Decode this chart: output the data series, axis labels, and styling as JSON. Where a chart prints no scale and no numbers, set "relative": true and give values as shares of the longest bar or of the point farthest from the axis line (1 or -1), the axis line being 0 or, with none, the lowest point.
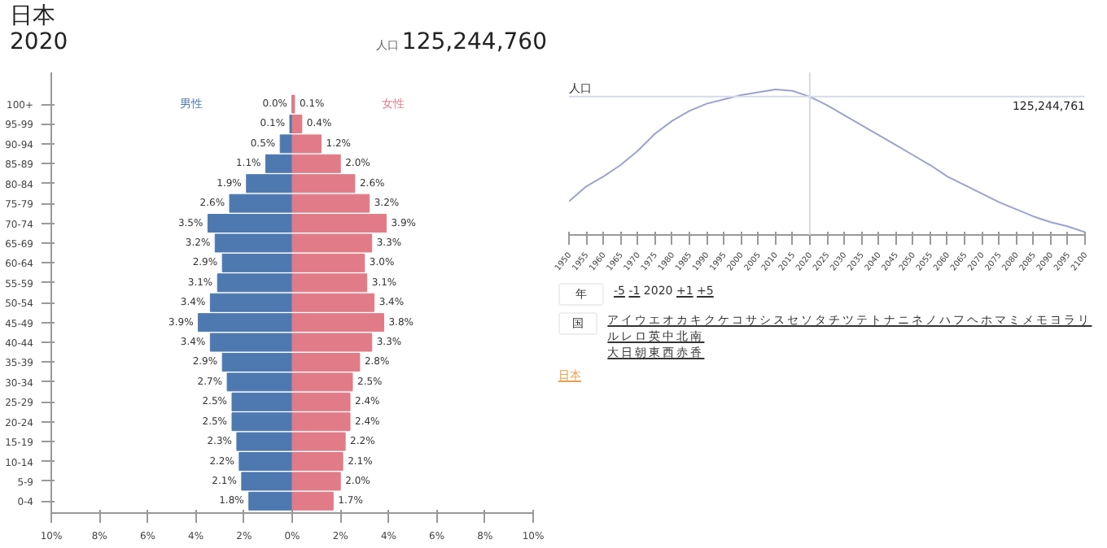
{
  "chart_data": [
    {
      "type": "bar",
      "orientation": "horizontal",
      "title": "日本",
      "subtitle": "2020",
      "annotations": [
        "人口",
        "125,244,760"
      ],
      "categories": [
        "100+",
        "95-99",
        "90-94",
        "85-89",
        "80-84",
        "75-79",
        "70-74",
        "65-69",
        "60-64",
        "55-59",
        "50-54",
        "45-49",
        "40-44",
        "35-39",
        "30-34",
        "25-29",
        "20-24",
        "15-19",
        "10-14",
        "5-9",
        "0-4"
      ],
      "series": [
        {
          "name": "男性",
          "color": "#4e79b0",
          "base": [
            -0.0,
            -0.1,
            -0.5,
            -1.1,
            -1.9,
            -2.6,
            -3.5,
            -3.2,
            -2.9,
            -3.1,
            -3.4,
            -3.9,
            -3.4,
            -2.9,
            -2.7,
            -2.5,
            -2.5,
            -2.3,
            -2.2,
            -2.1,
            -1.8
          ],
          "values": [
            0.0,
            0.1,
            0.5,
            1.1,
            1.9,
            2.6,
            3.5,
            3.2,
            2.9,
            3.1,
            3.4,
            3.9,
            3.4,
            2.9,
            2.7,
            2.5,
            2.5,
            2.3,
            2.2,
            2.1,
            1.8
          ],
          "value_labels": [
            "0.0%",
            "0.1%",
            "0.5%",
            "1.1%",
            "1.9%",
            "2.6%",
            "3.5%",
            "3.2%",
            "2.9%",
            "3.1%",
            "3.4%",
            "3.9%",
            "3.4%",
            "2.9%",
            "2.7%",
            "2.5%",
            "2.5%",
            "2.3%",
            "2.2%",
            "2.1%",
            "1.8%"
          ]
        },
        {
          "name": "女性",
          "color": "#e17b88",
          "values": [
            0.1,
            0.4,
            1.2,
            2.0,
            2.6,
            3.2,
            3.9,
            3.3,
            3.0,
            3.1,
            3.4,
            3.8,
            3.3,
            2.8,
            2.5,
            2.4,
            2.4,
            2.2,
            2.1,
            2.0,
            1.7
          ],
          "value_labels": [
            "0.1%",
            "0.4%",
            "1.2%",
            "2.0%",
            "2.6%",
            "3.2%",
            "3.9%",
            "3.3%",
            "3.0%",
            "3.1%",
            "3.4%",
            "3.8%",
            "3.3%",
            "2.8%",
            "2.5%",
            "2.4%",
            "2.4%",
            "2.2%",
            "2.1%",
            "2.0%",
            "1.7%"
          ]
        }
      ],
      "xlim": [
        -10,
        10
      ],
      "xticks": [
        {
          "value": -10,
          "label": "10%"
        },
        {
          "value": -8,
          "label": "8%"
        },
        {
          "value": -6,
          "label": "6%"
        },
        {
          "value": -4,
          "label": "4%"
        },
        {
          "value": -2,
          "label": "2%"
        },
        {
          "value": 0,
          "label": "0%"
        },
        {
          "value": 2,
          "label": "2%"
        },
        {
          "value": 4,
          "label": "4%"
        },
        {
          "value": 6,
          "label": "6%"
        },
        {
          "value": 8,
          "label": "8%"
        },
        {
          "value": 10,
          "label": "10%"
        }
      ]
    },
    {
      "type": "line",
      "relative": true,
      "x": [
        1950,
        1955,
        1960,
        1965,
        1970,
        1975,
        1980,
        1985,
        1990,
        1995,
        2000,
        2005,
        2010,
        2015,
        2020,
        2025,
        2030,
        2035,
        2040,
        2045,
        2050,
        2055,
        2060,
        2065,
        2070,
        2075,
        2080,
        2085,
        2090,
        2095,
        2100
      ],
      "series": [
        {
          "color": "#9aa3cc",
          "values": [
            0.215,
            0.32,
            0.39,
            0.47,
            0.57,
            0.69,
            0.78,
            0.85,
            0.9,
            0.93,
            0.96,
            0.98,
            1.0,
            0.99,
            0.95,
            0.89,
            0.82,
            0.75,
            0.68,
            0.61,
            0.54,
            0.47,
            0.39,
            0.33,
            0.27,
            0.21,
            0.16,
            0.11,
            0.07,
            0.04,
            0.0
          ]
        }
      ],
      "xlim": [
        1950,
        2100
      ],
      "xticks": [
        1950,
        1955,
        1960,
        1965,
        1970,
        1975,
        1980,
        1985,
        1990,
        1995,
        2000,
        2005,
        2010,
        2015,
        2020,
        2025,
        2030,
        2035,
        2040,
        2045,
        2050,
        2055,
        2060,
        2065,
        2070,
        2075,
        2080,
        2085,
        2090,
        2095,
        2100
      ],
      "ref_lines": [
        {
          "axis": "y",
          "value": 0.95,
          "label": "人口",
          "color": "#d5dbe8"
        },
        {
          "axis": "x",
          "value": 2020,
          "color": "#d5dbe8"
        }
      ],
      "annotations": [
        "125,244,761"
      ]
    },
    {
      "type": "other",
      "annotations": [
        "年",
        "-5",
        "-1",
        "2020",
        "+1",
        "+5",
        "国",
        "アイウエオカキクケコサシスセソタチツテトナニネノハフヘホマミメモヨラリルレロ英中北南",
        "大日朝東西赤香",
        "日本"
      ]
    }
  ]
}
